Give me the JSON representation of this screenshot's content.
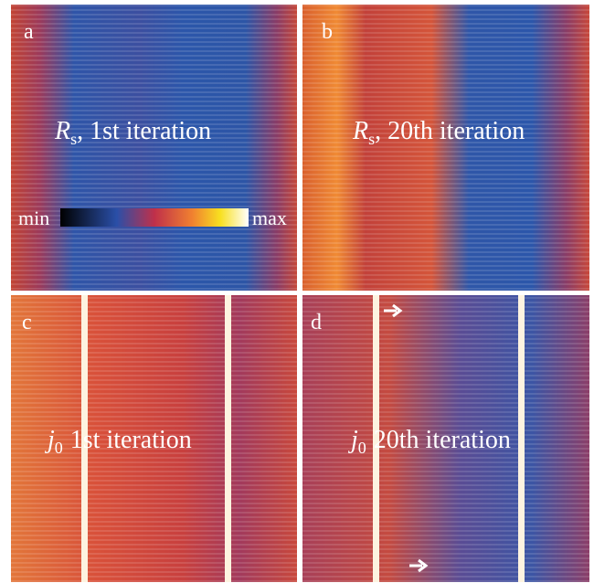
{
  "panels": [
    {
      "label": "a",
      "symbol": "R",
      "subscript": "s",
      "caption": ", 1st iteration"
    },
    {
      "label": "b",
      "symbol": "R",
      "subscript": "s",
      "caption": ", 20th iteration"
    },
    {
      "label": "c",
      "symbol": "j",
      "subscript": "0",
      "caption": "1st iteration"
    },
    {
      "label": "d",
      "symbol": "j",
      "subscript": "0",
      "caption": "20th iteration"
    }
  ],
  "colorbar": {
    "min": "min",
    "max": "max"
  }
}
